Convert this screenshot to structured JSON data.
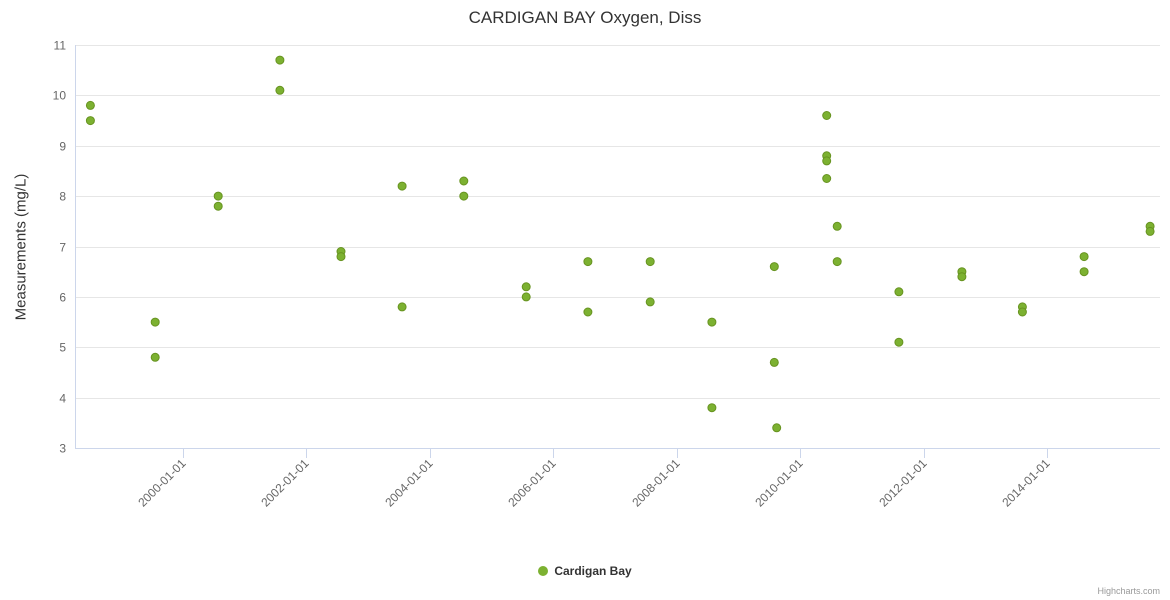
{
  "credits": "Highcharts.com",
  "colors": {
    "series_green": "#7cb131",
    "grid": "#e6e6e6",
    "axis_line": "#ccd6eb",
    "tick_label": "#666666",
    "title": "#333333",
    "credits": "#999999"
  },
  "legend": {
    "label": "Cardigan Bay"
  },
  "chart_data": {
    "type": "scatter",
    "title": "CARDIGAN BAY Oxygen, Diss",
    "xlabel": "",
    "ylabel": "Measurements (mg/L)",
    "ylim": [
      3,
      11
    ],
    "y_ticks": [
      3,
      4,
      5,
      6,
      7,
      8,
      9,
      10,
      11
    ],
    "xlim": [
      1998.25,
      2015.83
    ],
    "x_ticks": [
      {
        "value": 2000,
        "label": "2000-01-01"
      },
      {
        "value": 2002,
        "label": "2002-01-01"
      },
      {
        "value": 2004,
        "label": "2004-01-01"
      },
      {
        "value": 2006,
        "label": "2006-01-01"
      },
      {
        "value": 2008,
        "label": "2008-01-01"
      },
      {
        "value": 2010,
        "label": "2010-01-01"
      },
      {
        "value": 2012,
        "label": "2012-01-01"
      },
      {
        "value": 2014,
        "label": "2014-01-01"
      }
    ],
    "grid": true,
    "legend_position": "bottom",
    "series": [
      {
        "name": "Cardigan Bay",
        "color": "#7cb131",
        "points": [
          [
            1998.5,
            9.8
          ],
          [
            1998.5,
            9.5
          ],
          [
            1999.55,
            5.5
          ],
          [
            1999.55,
            4.8
          ],
          [
            2000.57,
            8.0
          ],
          [
            2000.57,
            7.8
          ],
          [
            2001.57,
            10.7
          ],
          [
            2001.57,
            10.1
          ],
          [
            2002.56,
            6.9
          ],
          [
            2002.56,
            6.8
          ],
          [
            2003.55,
            8.2
          ],
          [
            2003.55,
            5.8
          ],
          [
            2004.55,
            8.3
          ],
          [
            2004.55,
            8.0
          ],
          [
            2005.56,
            6.2
          ],
          [
            2005.56,
            6.0
          ],
          [
            2006.56,
            6.7
          ],
          [
            2006.56,
            5.7
          ],
          [
            2007.57,
            6.7
          ],
          [
            2007.57,
            5.9
          ],
          [
            2008.57,
            5.5
          ],
          [
            2008.57,
            3.8
          ],
          [
            2009.58,
            6.6
          ],
          [
            2009.58,
            4.7
          ],
          [
            2009.62,
            3.4
          ],
          [
            2010.43,
            9.6
          ],
          [
            2010.43,
            8.8
          ],
          [
            2010.43,
            8.7
          ],
          [
            2010.43,
            8.35
          ],
          [
            2010.6,
            7.4
          ],
          [
            2010.6,
            6.7
          ],
          [
            2011.6,
            6.1
          ],
          [
            2011.6,
            5.1
          ],
          [
            2012.62,
            6.5
          ],
          [
            2012.62,
            6.4
          ],
          [
            2013.6,
            5.8
          ],
          [
            2013.6,
            5.7
          ],
          [
            2014.6,
            6.8
          ],
          [
            2014.6,
            6.5
          ],
          [
            2015.67,
            7.4
          ],
          [
            2015.67,
            7.3
          ]
        ]
      }
    ]
  }
}
